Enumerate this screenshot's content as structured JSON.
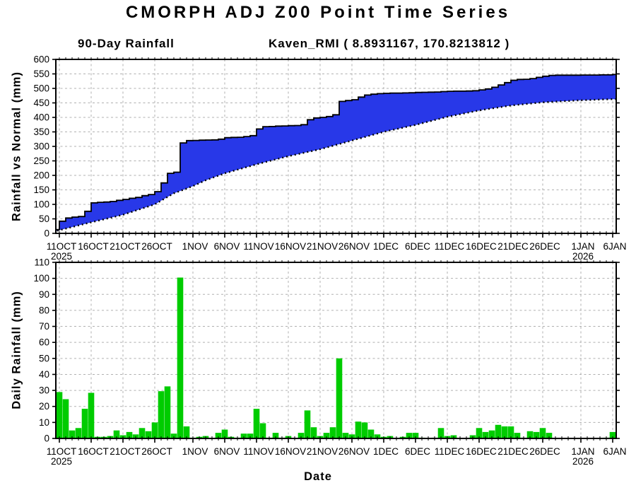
{
  "title": "CMORPH ADJ Z00 Point Time Series",
  "xlabel": "Date",
  "colors": {
    "rainfall_fill": "#2838e8",
    "curve_line": "#000000",
    "bar_green": "#00cc00",
    "grid": "#b0b0b0",
    "axis": "#000000",
    "background": "#ffffff"
  },
  "x_ticks": [
    {
      "day": 1,
      "label": "11OCT",
      "sub": "2025"
    },
    {
      "day": 6,
      "label": "16OCT"
    },
    {
      "day": 11,
      "label": "21OCT"
    },
    {
      "day": 16,
      "label": "26OCT"
    },
    {
      "day": 22,
      "label": "1NOV"
    },
    {
      "day": 27,
      "label": "6NOV"
    },
    {
      "day": 32,
      "label": "11NOV"
    },
    {
      "day": 37,
      "label": "16NOV"
    },
    {
      "day": 42,
      "label": "21NOV"
    },
    {
      "day": 47,
      "label": "26NOV"
    },
    {
      "day": 52,
      "label": "1DEC"
    },
    {
      "day": 57,
      "label": "6DEC"
    },
    {
      "day": 62,
      "label": "11DEC"
    },
    {
      "day": 67,
      "label": "16DEC"
    },
    {
      "day": 72,
      "label": "21DEC"
    },
    {
      "day": 77,
      "label": "26DEC"
    },
    {
      "day": 83,
      "label": "1JAN",
      "sub": "2026"
    },
    {
      "day": 88,
      "label": "6JAN"
    }
  ],
  "chart_data": [
    {
      "type": "area",
      "title": "90-Day Rainfall",
      "location_label": "Kaven_RMI ( 8.8931167, 170.8213812 )",
      "ylabel": "Rainfall vs Normal (mm)",
      "ylim": [
        0,
        600
      ],
      "ystep": 50,
      "x_start": "10OCT2025",
      "x_end": "6JAN2026",
      "grid": true,
      "series": [
        {
          "name": "accumulated-rainfall-observed",
          "style": "solid black step line over blue fill",
          "start_day_label": "10OCT2025",
          "values": [
            13,
            42,
            53,
            56,
            58,
            76,
            105,
            107,
            108,
            110,
            114,
            117,
            121,
            124,
            130,
            134,
            144,
            174,
            207,
            211,
            312,
            320,
            320.5,
            321.5,
            322,
            322.5,
            325,
            330,
            331,
            331.5,
            334,
            337,
            360,
            368,
            368.5,
            370,
            370.5,
            371.5,
            372,
            375,
            392,
            398,
            400,
            403,
            409,
            455,
            458,
            461,
            470,
            477,
            480,
            482,
            483,
            484,
            484,
            484.5,
            485,
            486,
            486.5,
            487,
            487.5,
            489,
            490,
            490.5,
            490.5,
            491,
            492,
            495,
            498,
            504,
            512,
            520,
            528,
            531,
            531.5,
            534,
            538,
            542,
            545,
            545.5,
            545.5,
            545.5,
            545.5,
            546,
            546,
            546,
            546.5,
            546.5,
            548
          ]
        },
        {
          "name": "accumulated-rainfall-normal",
          "style": "dotted black line (lower bound of blue band)",
          "anchors_day_value": [
            [
              0,
              5
            ],
            [
              1,
              11
            ],
            [
              6,
              38
            ],
            [
              11,
              64
            ],
            [
              16,
              100
            ],
            [
              19,
              138
            ],
            [
              22,
              163
            ],
            [
              24,
              183
            ],
            [
              27,
              207
            ],
            [
              32,
              238
            ],
            [
              37,
              266
            ],
            [
              42,
              290
            ],
            [
              47,
              320
            ],
            [
              52,
              350
            ],
            [
              57,
              374
            ],
            [
              62,
              402
            ],
            [
              67,
              424
            ],
            [
              72,
              441
            ],
            [
              77,
              452
            ],
            [
              83,
              459
            ],
            [
              88,
              463
            ]
          ]
        }
      ]
    },
    {
      "type": "bar",
      "ylabel": "Daily Rainfall (mm)",
      "xlabel": "Date",
      "ylim": [
        0,
        110
      ],
      "ystep": 10,
      "grid": true,
      "start_date": "11OCT2025",
      "end_date": "6JAN2026",
      "values": [
        29,
        24.5,
        5,
        6.5,
        18.5,
        28.5,
        1,
        1,
        1.5,
        5,
        2,
        4,
        2.5,
        6.5,
        4.5,
        10,
        29.5,
        32.5,
        3,
        100.5,
        7.5,
        0.5,
        1,
        1.5,
        0.3,
        3.5,
        5.5,
        1,
        0.5,
        3,
        3,
        18.5,
        9.5,
        0.5,
        3.5,
        0.5,
        1.5,
        0.3,
        3.5,
        17.5,
        7,
        1.5,
        3.5,
        7,
        50,
        3.5,
        2.5,
        10.5,
        10,
        5.5,
        2.5,
        1,
        1.5,
        0.3,
        1,
        3.5,
        3.5,
        0.5,
        0.3,
        0.5,
        6.5,
        1.5,
        2,
        0.3,
        0.3,
        2,
        6.5,
        4,
        5,
        8.5,
        7.5,
        7.5,
        3.5,
        0.5,
        4.5,
        4,
        6.5,
        3.5,
        0.3,
        0,
        0,
        0,
        0,
        0,
        0,
        0,
        0.5,
        4
      ]
    }
  ]
}
